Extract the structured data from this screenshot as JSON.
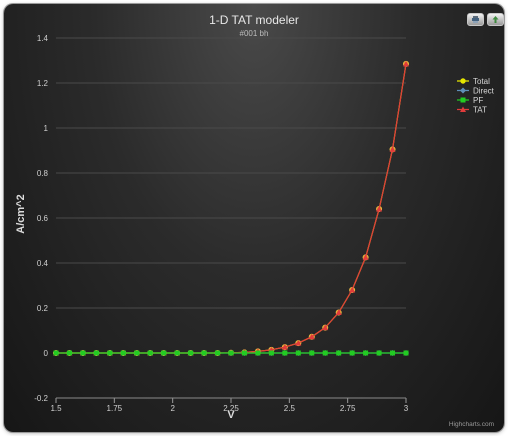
{
  "chart_data": {
    "type": "line",
    "title": "1-D TAT modeler",
    "subtitle": "#001 bh",
    "xlabel": "V",
    "ylabel": "A/cm^2",
    "xlim": [
      1.5,
      3
    ],
    "ylim": [
      -0.2,
      1.4
    ],
    "x_ticks": [
      "1.5",
      "1.75",
      "2",
      "2.25",
      "2.5",
      "2.75",
      "3"
    ],
    "y_ticks": [
      "-0.2",
      "0",
      "0.2",
      "0.4",
      "0.6",
      "0.8",
      "1",
      "1.2",
      "1.4"
    ],
    "grid": true,
    "legend_position": "right",
    "credit": "Highcharts.com",
    "x": [
      1.5,
      1.5577,
      1.6154,
      1.6731,
      1.7308,
      1.7885,
      1.8462,
      1.9038,
      1.9615,
      2.0192,
      2.0769,
      2.1346,
      2.1923,
      2.25,
      2.3077,
      2.3654,
      2.4231,
      2.4808,
      2.5385,
      2.5962,
      2.6538,
      2.7115,
      2.7692,
      2.8269,
      2.8846,
      2.9423,
      3.0
    ],
    "series": [
      {
        "name": "Total",
        "color": "#e6e600",
        "marker": "circle",
        "values": [
          0,
          0,
          0,
          0,
          0,
          0,
          0,
          0,
          0,
          0,
          0,
          0,
          0,
          0.001,
          0.003,
          0.007,
          0.014,
          0.026,
          0.044,
          0.072,
          0.113,
          0.18,
          0.28,
          0.425,
          0.64,
          0.905,
          1.285
        ]
      },
      {
        "name": "Direct",
        "color": "#5f8fb8",
        "marker": "diamond",
        "values": [
          0,
          0,
          0,
          0,
          0,
          0,
          0,
          0,
          0,
          0,
          0,
          0,
          0,
          0,
          0,
          0,
          0,
          0,
          0,
          0,
          0,
          0,
          0,
          0,
          0,
          0,
          0
        ]
      },
      {
        "name": "PF",
        "color": "#22cc22",
        "marker": "square",
        "values": [
          0,
          0,
          0,
          0,
          0,
          0,
          0,
          0,
          0,
          0,
          0,
          0,
          0,
          0,
          0,
          0,
          0,
          0,
          0,
          0,
          0,
          0,
          0,
          0,
          0,
          0,
          0
        ]
      },
      {
        "name": "TAT",
        "color": "#e03b3b",
        "marker": "triangle",
        "values": [
          0,
          0,
          0,
          0,
          0,
          0,
          0,
          0,
          0,
          0,
          0,
          0,
          0,
          0.001,
          0.003,
          0.007,
          0.014,
          0.026,
          0.044,
          0.072,
          0.113,
          0.18,
          0.28,
          0.425,
          0.64,
          0.905,
          1.285
        ]
      }
    ]
  },
  "toolbar": {
    "print_icon": "printer-icon",
    "export_icon": "export-icon"
  }
}
